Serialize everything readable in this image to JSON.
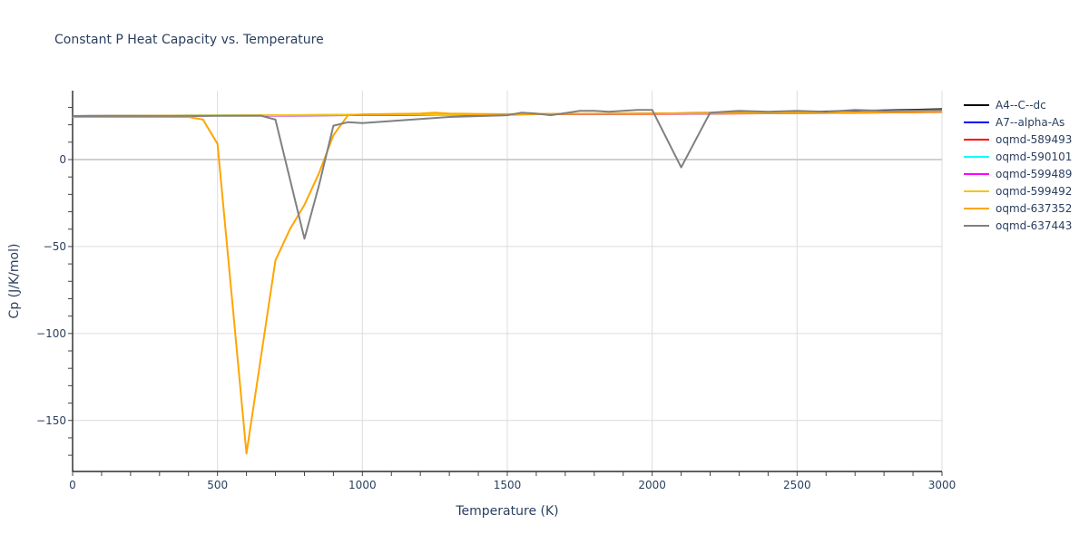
{
  "title": "Constant P Heat Capacity vs. Temperature",
  "chart_data": {
    "type": "line",
    "title": "Constant P Heat Capacity vs. Temperature",
    "xlabel": "Temperature (K)",
    "ylabel": "Cp (J/K/mol)",
    "xlim": [
      0,
      3000
    ],
    "ylim": [
      -180,
      40
    ],
    "x_ticks": [
      0,
      500,
      1000,
      1500,
      2000,
      2500,
      3000
    ],
    "y_ticks": [
      0,
      -50,
      -100,
      -150
    ],
    "grid": true,
    "legend_position": "right",
    "series": [
      {
        "name": "A4--C--dc",
        "color": "#000000",
        "x": [
          0,
          500,
          1000,
          1500,
          2000,
          2500,
          3000
        ],
        "y": [
          25.0,
          25.3,
          25.6,
          26.0,
          26.5,
          27.3,
          29.0
        ]
      },
      {
        "name": "A7--alpha-As",
        "color": "#0000ff",
        "x": [
          0,
          500,
          1000,
          1500,
          2000,
          2500,
          3000
        ],
        "y": [
          25.0,
          25.3,
          25.6,
          26.0,
          26.4,
          27.0,
          27.8
        ]
      },
      {
        "name": "oqmd-589493",
        "color": "#ff0000",
        "x": [
          0,
          500,
          1000,
          1500,
          2000,
          2500,
          3000
        ],
        "y": [
          24.5,
          25.3,
          25.7,
          26.0,
          26.2,
          26.7,
          27.3
        ]
      },
      {
        "name": "oqmd-590101",
        "color": "#00ffff",
        "x": [
          0,
          500,
          1000,
          1500,
          2000,
          2500,
          3000
        ],
        "y": [
          25.0,
          25.4,
          25.7,
          26.0,
          26.3,
          26.8,
          27.4
        ]
      },
      {
        "name": "oqmd-599489",
        "color": "#ff00ff",
        "x": [
          0,
          500,
          1000,
          1500,
          2000,
          2500,
          3000
        ],
        "y": [
          25.0,
          25.3,
          25.6,
          26.0,
          26.3,
          26.8,
          27.5
        ]
      },
      {
        "name": "oqmd-599492",
        "color": "#f5c518",
        "x": [
          0,
          500,
          1000,
          1500,
          2000,
          2500,
          3000
        ],
        "y": [
          25.0,
          25.4,
          25.8,
          26.2,
          26.5,
          27.0,
          27.6
        ]
      },
      {
        "name": "oqmd-637352",
        "color": "#ffa500",
        "x": [
          0,
          400,
          450,
          500,
          600,
          700,
          750,
          800,
          850,
          900,
          950,
          1000,
          1200,
          1250,
          1300,
          1500,
          2000,
          2500,
          3000
        ],
        "y": [
          24.5,
          24.5,
          23.0,
          9.0,
          -169.0,
          -58.0,
          -40.0,
          -26.0,
          -8.0,
          14.0,
          25.5,
          26.0,
          26.5,
          27.0,
          26.5,
          26.0,
          26.5,
          26.8,
          27.5
        ]
      },
      {
        "name": "oqmd-637443",
        "color": "#808080",
        "x": [
          0,
          650,
          700,
          800,
          850,
          900,
          950,
          1000,
          1300,
          1500,
          1550,
          1600,
          1650,
          1750,
          1800,
          1850,
          1950,
          2000,
          2100,
          2200,
          2300,
          2400,
          2500,
          2600,
          2700,
          2800,
          3000
        ],
        "y": [
          25.0,
          25.2,
          23.0,
          -45.5,
          -15.0,
          19.5,
          21.5,
          21.0,
          24.5,
          25.5,
          27.0,
          26.5,
          25.5,
          28.0,
          28.0,
          27.5,
          28.5,
          28.5,
          -4.5,
          27.0,
          28.0,
          27.5,
          28.0,
          27.5,
          28.5,
          28.0,
          28.5
        ]
      }
    ]
  },
  "axes": {
    "xlabel": "Temperature (K)",
    "ylabel": "Cp (J/K/mol)",
    "x_tick_labels": [
      "0",
      "500",
      "1000",
      "1500",
      "2000",
      "2500",
      "3000"
    ],
    "y_tick_labels": [
      "0",
      "−50",
      "−100",
      "−150"
    ]
  },
  "legend": {
    "items": [
      {
        "label": "A4--C--dc",
        "color": "#000000"
      },
      {
        "label": "A7--alpha-As",
        "color": "#0000ff"
      },
      {
        "label": "oqmd-589493",
        "color": "#ff0000"
      },
      {
        "label": "oqmd-590101",
        "color": "#00ffff"
      },
      {
        "label": "oqmd-599489",
        "color": "#ff00ff"
      },
      {
        "label": "oqmd-599492",
        "color": "#f5c518"
      },
      {
        "label": "oqmd-637352",
        "color": "#ffa500"
      },
      {
        "label": "oqmd-637443",
        "color": "#808080"
      }
    ]
  }
}
